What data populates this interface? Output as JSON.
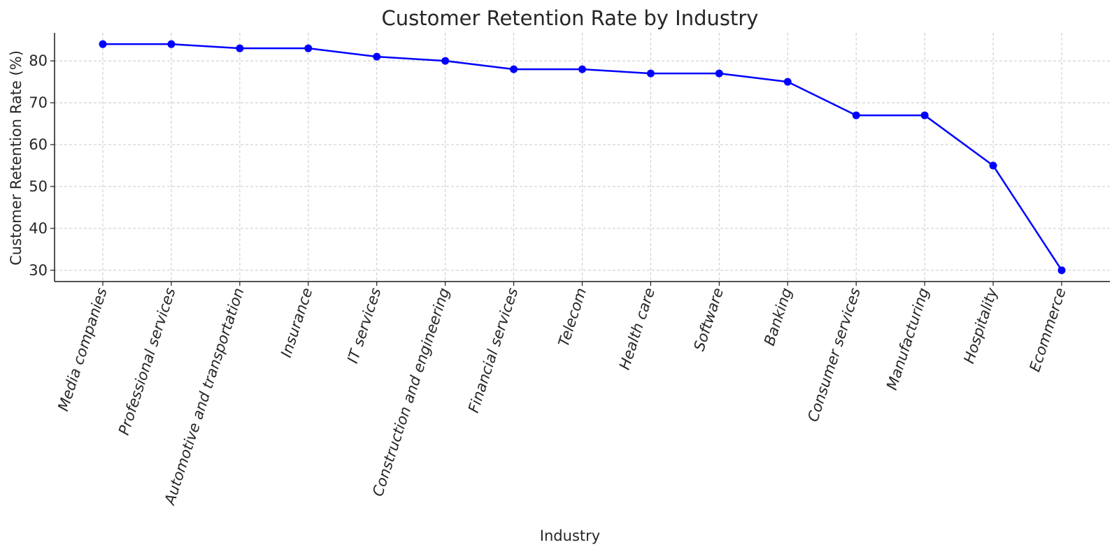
{
  "chart_data": {
    "type": "line",
    "title": "Customer Retention Rate by Industry",
    "xlabel": "Industry",
    "ylabel": "Customer Retention Rate (%)",
    "categories": [
      "Media companies",
      "Professional services",
      "Automotive and transportation",
      "Insurance",
      "IT services",
      "Construction and engineering",
      "Financial services",
      "Telecom",
      "Health care",
      "Software",
      "Banking",
      "Consumer services",
      "Manufacturing",
      "Hospitality",
      "Ecommerce"
    ],
    "values": [
      84,
      84,
      83,
      83,
      81,
      80,
      78,
      78,
      77,
      77,
      75,
      67,
      67,
      55,
      30
    ],
    "ylim": [
      27.3,
      86.7
    ],
    "yticks": [
      30,
      40,
      50,
      60,
      70,
      80
    ],
    "grid": true,
    "line_color": "#0000ff",
    "marker": "circle"
  }
}
